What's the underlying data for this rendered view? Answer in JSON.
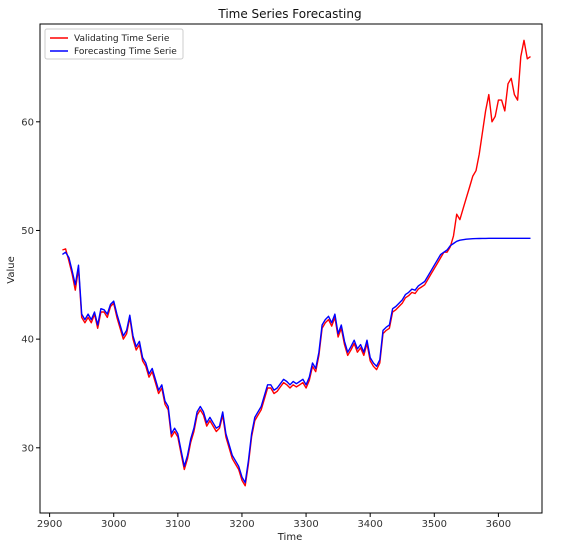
{
  "chart_data": {
    "type": "line",
    "title": "Time Series Forecasting",
    "xlabel": "Time",
    "ylabel": "Value",
    "xlim": [
      2885,
      3668
    ],
    "ylim": [
      24,
      69
    ],
    "xticks": [
      2900,
      3000,
      3100,
      3200,
      3300,
      3400,
      3500,
      3600
    ],
    "yticks": [
      30,
      40,
      50,
      60
    ],
    "legend": "top-left",
    "grid": false,
    "series": [
      {
        "name": "Validating Time Serie",
        "color": "#ff0000",
        "x": [
          2920,
          2925,
          2930,
          2935,
          2940,
          2945,
          2950,
          2955,
          2960,
          2965,
          2970,
          2975,
          2980,
          2985,
          2990,
          2995,
          3000,
          3005,
          3010,
          3015,
          3020,
          3025,
          3030,
          3035,
          3040,
          3045,
          3050,
          3055,
          3060,
          3065,
          3070,
          3075,
          3080,
          3085,
          3090,
          3095,
          3100,
          3105,
          3110,
          3115,
          3120,
          3125,
          3130,
          3135,
          3140,
          3145,
          3150,
          3155,
          3160,
          3165,
          3170,
          3175,
          3180,
          3185,
          3190,
          3195,
          3200,
          3205,
          3210,
          3215,
          3220,
          3225,
          3230,
          3235,
          3240,
          3245,
          3250,
          3255,
          3260,
          3265,
          3270,
          3275,
          3280,
          3285,
          3290,
          3295,
          3300,
          3305,
          3310,
          3315,
          3320,
          3325,
          3330,
          3335,
          3340,
          3345,
          3350,
          3355,
          3360,
          3365,
          3370,
          3375,
          3380,
          3385,
          3390,
          3395,
          3400,
          3405,
          3410,
          3415,
          3420,
          3425,
          3430,
          3435,
          3440,
          3445,
          3450,
          3455,
          3460,
          3465,
          3470,
          3475,
          3480,
          3485,
          3490,
          3495,
          3500,
          3505,
          3510,
          3515,
          3520,
          3525,
          3530,
          3535,
          3540,
          3545,
          3550,
          3555,
          3560,
          3565,
          3570,
          3575,
          3580,
          3585,
          3590,
          3595,
          3600,
          3605,
          3610,
          3615,
          3620,
          3625,
          3630,
          3635,
          3640,
          3645,
          3650
        ],
        "y": [
          48.2,
          48.3,
          47.2,
          46.0,
          44.5,
          46.5,
          42.0,
          41.5,
          42.0,
          41.5,
          42.3,
          41.0,
          42.5,
          42.5,
          42.0,
          43.0,
          43.3,
          42.0,
          41.0,
          40.0,
          40.5,
          42.0,
          40.0,
          39.0,
          39.5,
          38.0,
          37.5,
          36.5,
          37.0,
          36.0,
          35.0,
          35.5,
          34.0,
          33.5,
          31.0,
          31.5,
          31.0,
          29.5,
          28.0,
          29.0,
          30.5,
          31.5,
          33.0,
          33.5,
          33.0,
          32.0,
          32.5,
          32.0,
          31.5,
          31.8,
          33.0,
          31.0,
          30.0,
          29.0,
          28.5,
          28.0,
          27.0,
          26.5,
          28.5,
          31.0,
          32.5,
          33.0,
          33.5,
          34.5,
          35.5,
          35.5,
          35.0,
          35.2,
          35.6,
          36.0,
          35.8,
          35.5,
          35.8,
          35.6,
          35.8,
          36.0,
          35.5,
          36.2,
          37.5,
          37.0,
          38.5,
          41.0,
          41.5,
          41.8,
          41.2,
          42.0,
          40.2,
          41.0,
          39.5,
          38.5,
          39.0,
          39.6,
          38.8,
          39.2,
          38.5,
          39.6,
          38.0,
          37.5,
          37.2,
          37.8,
          40.5,
          40.8,
          41.0,
          42.5,
          42.7,
          43.0,
          43.3,
          43.8,
          44.0,
          44.3,
          44.2,
          44.6,
          44.8,
          45.0,
          45.5,
          46.0,
          46.5,
          47.0,
          47.5,
          48.0,
          48.0,
          48.5,
          49.5,
          51.5,
          51.0,
          52.0,
          53.0,
          54.0,
          55.0,
          55.5,
          57.0,
          59.0,
          61.0,
          62.5,
          60.0,
          60.5,
          62.0,
          62.0,
          61.0,
          63.5,
          64.0,
          62.5,
          62.0,
          66.0,
          67.5,
          65.8,
          66.0
        ]
      },
      {
        "name": "Forecasting Time Serie",
        "color": "#0000ff",
        "x": [
          2920,
          2925,
          2930,
          2935,
          2940,
          2945,
          2950,
          2955,
          2960,
          2965,
          2970,
          2975,
          2980,
          2985,
          2990,
          2995,
          3000,
          3005,
          3010,
          3015,
          3020,
          3025,
          3030,
          3035,
          3040,
          3045,
          3050,
          3055,
          3060,
          3065,
          3070,
          3075,
          3080,
          3085,
          3090,
          3095,
          3100,
          3105,
          3110,
          3115,
          3120,
          3125,
          3130,
          3135,
          3140,
          3145,
          3150,
          3155,
          3160,
          3165,
          3170,
          3175,
          3180,
          3185,
          3190,
          3195,
          3200,
          3205,
          3210,
          3215,
          3220,
          3225,
          3230,
          3235,
          3240,
          3245,
          3250,
          3255,
          3260,
          3265,
          3270,
          3275,
          3280,
          3285,
          3290,
          3295,
          3300,
          3305,
          3310,
          3315,
          3320,
          3325,
          3330,
          3335,
          3340,
          3345,
          3350,
          3355,
          3360,
          3365,
          3370,
          3375,
          3380,
          3385,
          3390,
          3395,
          3400,
          3405,
          3410,
          3415,
          3420,
          3425,
          3430,
          3435,
          3440,
          3445,
          3450,
          3455,
          3460,
          3465,
          3470,
          3475,
          3480,
          3485,
          3490,
          3495,
          3500,
          3505,
          3510,
          3515,
          3520,
          3525,
          3530,
          3535,
          3540,
          3545,
          3550,
          3555,
          3560,
          3565,
          3570,
          3575,
          3580,
          3585,
          3590,
          3595,
          3600,
          3605,
          3610,
          3615,
          3620,
          3625,
          3630,
          3635,
          3640,
          3645,
          3650
        ],
        "y": [
          47.8,
          48.0,
          47.5,
          46.3,
          45.0,
          46.8,
          42.3,
          41.8,
          42.3,
          41.8,
          42.5,
          41.3,
          42.8,
          42.7,
          42.3,
          43.2,
          43.5,
          42.3,
          41.3,
          40.3,
          40.8,
          42.2,
          40.3,
          39.3,
          39.8,
          38.3,
          37.8,
          36.8,
          37.3,
          36.3,
          35.3,
          35.8,
          34.3,
          33.8,
          31.3,
          31.8,
          31.3,
          29.8,
          28.3,
          29.3,
          30.8,
          31.8,
          33.3,
          33.8,
          33.3,
          32.3,
          32.8,
          32.3,
          31.8,
          32.0,
          33.3,
          31.3,
          30.3,
          29.3,
          28.8,
          28.3,
          27.3,
          26.8,
          28.8,
          31.3,
          32.8,
          33.3,
          33.8,
          34.8,
          35.8,
          35.8,
          35.3,
          35.5,
          35.9,
          36.3,
          36.1,
          35.8,
          36.1,
          35.9,
          36.1,
          36.3,
          35.8,
          36.5,
          37.8,
          37.3,
          38.8,
          41.3,
          41.8,
          42.1,
          41.5,
          42.3,
          40.5,
          41.3,
          39.8,
          38.8,
          39.3,
          39.9,
          39.1,
          39.5,
          38.8,
          39.9,
          38.3,
          37.8,
          37.5,
          38.1,
          40.8,
          41.1,
          41.3,
          42.8,
          43.0,
          43.3,
          43.6,
          44.1,
          44.3,
          44.6,
          44.5,
          44.9,
          45.1,
          45.3,
          45.8,
          46.3,
          46.8,
          47.3,
          47.8,
          48.0,
          48.2,
          48.6,
          48.8,
          49.0,
          49.1,
          49.15,
          49.2,
          49.22,
          49.24,
          49.25,
          49.26,
          49.27,
          49.27,
          49.28,
          49.28,
          49.28,
          49.28,
          49.28,
          49.28,
          49.28,
          49.28,
          49.28,
          49.28,
          49.28,
          49.28,
          49.28,
          49.28
        ]
      }
    ]
  }
}
